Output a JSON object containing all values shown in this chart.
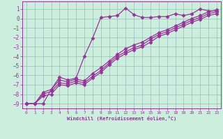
{
  "xlabel": "Windchill (Refroidissement éolien,°C)",
  "background_color": "#cceedd",
  "line_color": "#993399",
  "grid_color": "#99bbbb",
  "xlim": [
    -0.5,
    23.5
  ],
  "ylim": [
    -9.5,
    1.8
  ],
  "yticks": [
    1,
    0,
    -1,
    -2,
    -3,
    -4,
    -5,
    -6,
    -7,
    -8,
    -9
  ],
  "xticks": [
    0,
    1,
    2,
    3,
    4,
    5,
    6,
    7,
    8,
    9,
    10,
    11,
    12,
    13,
    14,
    15,
    16,
    17,
    18,
    19,
    20,
    21,
    22,
    23
  ],
  "series": [
    {
      "x": [
        0,
        1,
        2,
        3,
        4,
        5,
        6,
        7,
        8,
        9,
        10,
        11,
        12,
        13,
        14,
        15,
        16,
        17,
        18,
        19,
        20,
        21,
        22,
        23
      ],
      "y": [
        -9,
        -9,
        -9,
        -7.5,
        -6.2,
        -6.5,
        -6.3,
        -4.0,
        -2.1,
        0.1,
        0.2,
        0.3,
        1.1,
        0.4,
        0.1,
        0.1,
        0.2,
        0.2,
        0.5,
        0.3,
        0.5,
        1.0,
        0.8,
        0.8
      ],
      "marker": "D",
      "markersize": 2.5,
      "linewidth": 0.9
    },
    {
      "x": [
        0,
        1,
        2,
        3,
        4,
        5,
        6,
        7,
        8,
        9,
        10,
        11,
        12,
        13,
        14,
        15,
        16,
        17,
        18,
        19,
        20,
        21,
        22,
        23
      ],
      "y": [
        -9,
        -9,
        -7.8,
        -7.5,
        -6.5,
        -6.7,
        -6.4,
        -6.6,
        -5.8,
        -5.2,
        -4.5,
        -3.8,
        -3.2,
        -2.8,
        -2.5,
        -2.0,
        -1.5,
        -1.2,
        -0.8,
        -0.4,
        0.0,
        0.3,
        0.7,
        0.9
      ],
      "marker": "D",
      "markersize": 2.5,
      "linewidth": 0.9
    },
    {
      "x": [
        0,
        1,
        2,
        3,
        4,
        5,
        6,
        7,
        8,
        9,
        10,
        11,
        12,
        13,
        14,
        15,
        16,
        17,
        18,
        19,
        20,
        21,
        22,
        23
      ],
      "y": [
        -9,
        -9,
        -8.0,
        -7.7,
        -6.8,
        -6.9,
        -6.6,
        -6.8,
        -6.1,
        -5.5,
        -4.7,
        -4.0,
        -3.5,
        -3.1,
        -2.8,
        -2.2,
        -1.7,
        -1.4,
        -1.0,
        -0.6,
        -0.2,
        0.1,
        0.5,
        0.7
      ],
      "marker": "D",
      "markersize": 2.5,
      "linewidth": 0.9
    },
    {
      "x": [
        0,
        1,
        2,
        3,
        4,
        5,
        6,
        7,
        8,
        9,
        10,
        11,
        12,
        13,
        14,
        15,
        16,
        17,
        18,
        19,
        20,
        21,
        22,
        23
      ],
      "y": [
        -9,
        -9,
        -8.2,
        -8.0,
        -7.0,
        -7.1,
        -6.8,
        -7.0,
        -6.3,
        -5.7,
        -4.9,
        -4.2,
        -3.7,
        -3.3,
        -3.0,
        -2.5,
        -1.9,
        -1.6,
        -1.2,
        -0.8,
        -0.4,
        -0.1,
        0.3,
        0.5
      ],
      "marker": "D",
      "markersize": 2.5,
      "linewidth": 0.9
    }
  ]
}
